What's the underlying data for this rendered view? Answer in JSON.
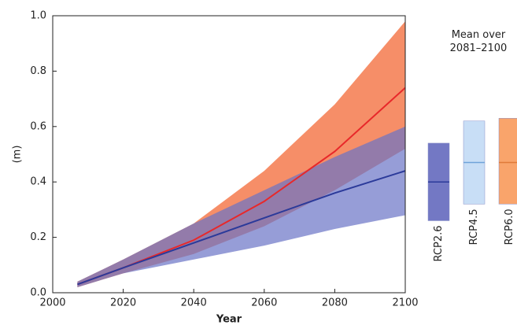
{
  "chart_data": [
    {
      "type": "line",
      "xlabel": "Year",
      "ylabel": "(m)",
      "xlim": [
        2000,
        2100
      ],
      "xticks": [
        2000,
        2020,
        2040,
        2060,
        2080,
        2100
      ],
      "ylim": [
        0,
        1
      ],
      "yticks": [
        {
          "value": 0,
          "label": "0.0"
        },
        0.2,
        0.4,
        0.6,
        0.8,
        {
          "value": 1,
          "label": "1.0"
        }
      ],
      "x": [
        2007,
        2020,
        2040,
        2060,
        2080,
        2100
      ],
      "series": [
        {
          "color": "#e8282a",
          "band_color": "#f57a4e",
          "values": [
            0.03,
            0.09,
            0.19,
            0.33,
            0.51,
            0.74
          ],
          "lower": [
            0.02,
            0.07,
            0.14,
            0.24,
            0.37,
            0.52
          ],
          "upper": [
            0.04,
            0.12,
            0.25,
            0.44,
            0.68,
            0.98
          ]
        },
        {
          "color": "#2b3a9a",
          "band_color": "#6a74c6",
          "values": [
            0.03,
            0.09,
            0.18,
            0.27,
            0.36,
            0.44
          ],
          "lower": [
            0.02,
            0.07,
            0.12,
            0.17,
            0.23,
            0.28
          ],
          "upper": [
            0.04,
            0.12,
            0.25,
            0.37,
            0.49,
            0.6
          ]
        }
      ]
    },
    {
      "type": "range",
      "title": "Mean over 2081–2100",
      "ylim": [
        0,
        1
      ],
      "categories": [
        "RCP2.6",
        "RCP4.5",
        "RCP6.0"
      ],
      "colors": [
        "#7378c4",
        "#c8def6",
        "#f9a46b"
      ],
      "mean_colors": [
        "#2b3a9a",
        "#6fa3d9",
        "#e07a3a"
      ],
      "low": [
        0.26,
        0.32,
        0.32
      ],
      "high": [
        0.54,
        0.62,
        0.63
      ],
      "mean": [
        0.4,
        0.47,
        0.47
      ]
    }
  ]
}
